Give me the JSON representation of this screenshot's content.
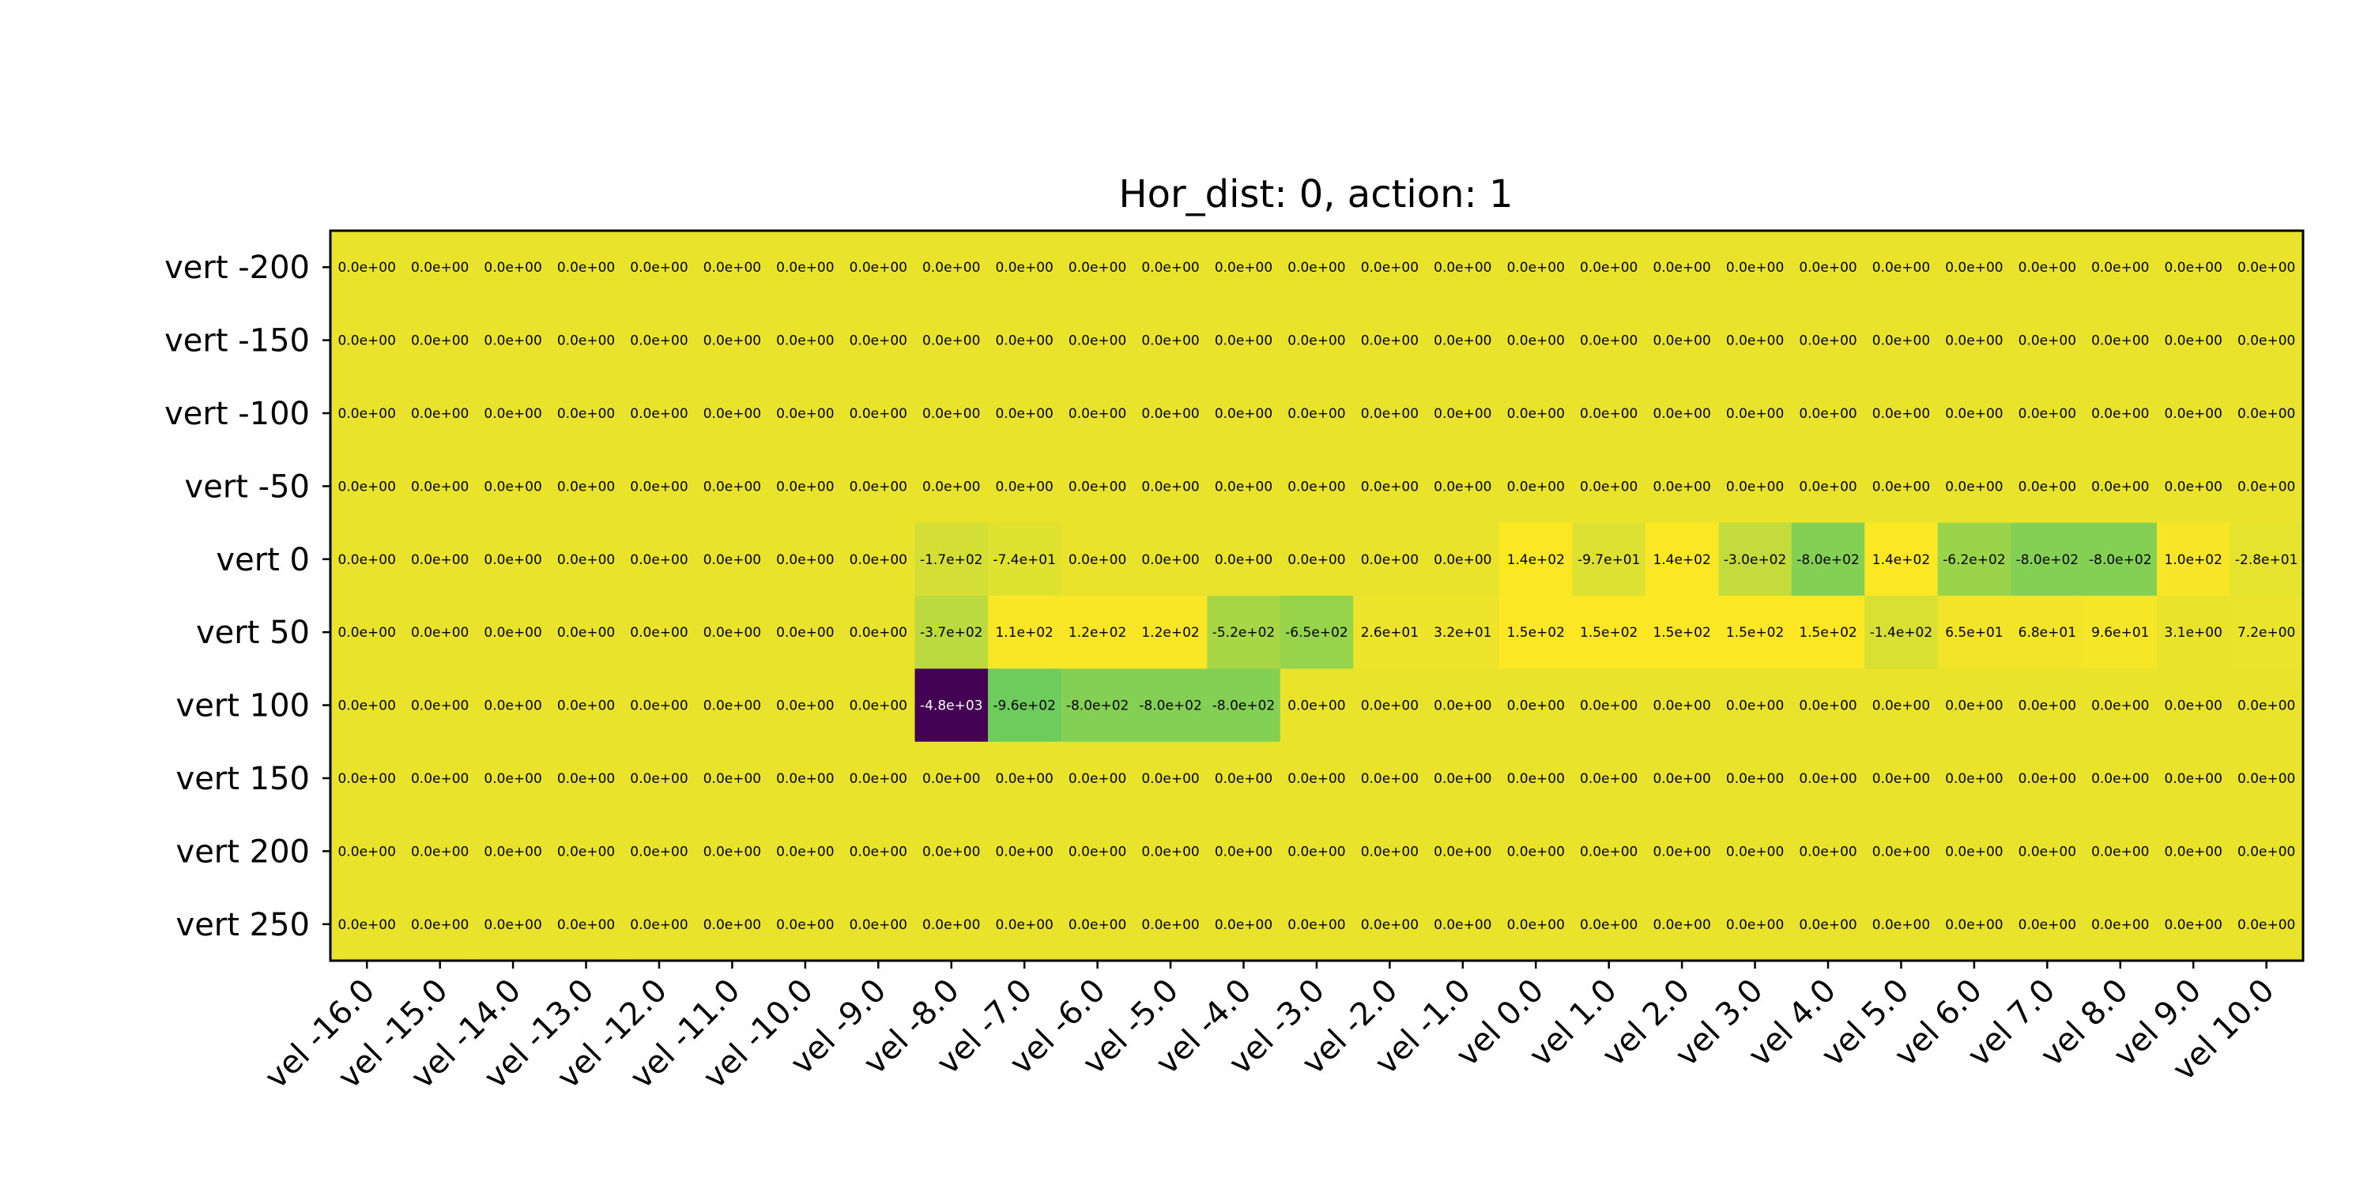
{
  "chart_data": {
    "type": "heatmap",
    "title": "Hor_dist: 0, action: 1",
    "x_labels": [
      "vel -16.0",
      "vel -15.0",
      "vel -14.0",
      "vel -13.0",
      "vel -12.0",
      "vel -11.0",
      "vel -10.0",
      "vel -9.0",
      "vel -8.0",
      "vel -7.0",
      "vel -6.0",
      "vel -5.0",
      "vel -4.0",
      "vel -3.0",
      "vel -2.0",
      "vel -1.0",
      "vel 0.0",
      "vel 1.0",
      "vel 2.0",
      "vel 3.0",
      "vel 4.0",
      "vel 5.0",
      "vel 6.0",
      "vel 7.0",
      "vel 8.0",
      "vel 9.0",
      "vel 10.0"
    ],
    "y_labels": [
      "vert -200",
      "vert -150",
      "vert -100",
      "vert -50",
      "vert 0",
      "vert 50",
      "vert 100",
      "vert 150",
      "vert 200",
      "vert 250"
    ],
    "values": [
      [
        0,
        0,
        0,
        0,
        0,
        0,
        0,
        0,
        0,
        0,
        0,
        0,
        0,
        0,
        0,
        0,
        0,
        0,
        0,
        0,
        0,
        0,
        0,
        0,
        0,
        0,
        0
      ],
      [
        0,
        0,
        0,
        0,
        0,
        0,
        0,
        0,
        0,
        0,
        0,
        0,
        0,
        0,
        0,
        0,
        0,
        0,
        0,
        0,
        0,
        0,
        0,
        0,
        0,
        0,
        0
      ],
      [
        0,
        0,
        0,
        0,
        0,
        0,
        0,
        0,
        0,
        0,
        0,
        0,
        0,
        0,
        0,
        0,
        0,
        0,
        0,
        0,
        0,
        0,
        0,
        0,
        0,
        0,
        0
      ],
      [
        0,
        0,
        0,
        0,
        0,
        0,
        0,
        0,
        0,
        0,
        0,
        0,
        0,
        0,
        0,
        0,
        0,
        0,
        0,
        0,
        0,
        0,
        0,
        0,
        0,
        0,
        0
      ],
      [
        0,
        0,
        0,
        0,
        0,
        0,
        0,
        0,
        -170,
        -74,
        0,
        0,
        0,
        0,
        0,
        0,
        140,
        -97,
        140,
        -300,
        -800,
        140,
        -620,
        -800,
        -800,
        100,
        -28
      ],
      [
        0,
        0,
        0,
        0,
        0,
        0,
        0,
        0,
        -370,
        110,
        120,
        120,
        -520,
        -650,
        26,
        32,
        150,
        150,
        150,
        150,
        150,
        -140,
        65,
        68,
        96,
        3.1,
        7.2
      ],
      [
        0,
        0,
        0,
        0,
        0,
        0,
        0,
        0,
        -4800,
        -960,
        -800,
        -800,
        -800,
        0,
        0,
        0,
        0,
        0,
        0,
        0,
        0,
        0,
        0,
        0,
        0,
        0,
        0
      ],
      [
        0,
        0,
        0,
        0,
        0,
        0,
        0,
        0,
        0,
        0,
        0,
        0,
        0,
        0,
        0,
        0,
        0,
        0,
        0,
        0,
        0,
        0,
        0,
        0,
        0,
        0,
        0
      ],
      [
        0,
        0,
        0,
        0,
        0,
        0,
        0,
        0,
        0,
        0,
        0,
        0,
        0,
        0,
        0,
        0,
        0,
        0,
        0,
        0,
        0,
        0,
        0,
        0,
        0,
        0,
        0
      ],
      [
        0,
        0,
        0,
        0,
        0,
        0,
        0,
        0,
        0,
        0,
        0,
        0,
        0,
        0,
        0,
        0,
        0,
        0,
        0,
        0,
        0,
        0,
        0,
        0,
        0,
        0,
        0
      ]
    ],
    "cell_labels": [
      [
        "0.0e+00",
        "0.0e+00",
        "0.0e+00",
        "0.0e+00",
        "0.0e+00",
        "0.0e+00",
        "0.0e+00",
        "0.0e+00",
        "0.0e+00",
        "0.0e+00",
        "0.0e+00",
        "0.0e+00",
        "0.0e+00",
        "0.0e+00",
        "0.0e+00",
        "0.0e+00",
        "0.0e+00",
        "0.0e+00",
        "0.0e+00",
        "0.0e+00",
        "0.0e+00",
        "0.0e+00",
        "0.0e+00",
        "0.0e+00",
        "0.0e+00",
        "0.0e+00",
        "0.0e+00"
      ],
      [
        "0.0e+00",
        "0.0e+00",
        "0.0e+00",
        "0.0e+00",
        "0.0e+00",
        "0.0e+00",
        "0.0e+00",
        "0.0e+00",
        "0.0e+00",
        "0.0e+00",
        "0.0e+00",
        "0.0e+00",
        "0.0e+00",
        "0.0e+00",
        "0.0e+00",
        "0.0e+00",
        "0.0e+00",
        "0.0e+00",
        "0.0e+00",
        "0.0e+00",
        "0.0e+00",
        "0.0e+00",
        "0.0e+00",
        "0.0e+00",
        "0.0e+00",
        "0.0e+00",
        "0.0e+00"
      ],
      [
        "0.0e+00",
        "0.0e+00",
        "0.0e+00",
        "0.0e+00",
        "0.0e+00",
        "0.0e+00",
        "0.0e+00",
        "0.0e+00",
        "0.0e+00",
        "0.0e+00",
        "0.0e+00",
        "0.0e+00",
        "0.0e+00",
        "0.0e+00",
        "0.0e+00",
        "0.0e+00",
        "0.0e+00",
        "0.0e+00",
        "0.0e+00",
        "0.0e+00",
        "0.0e+00",
        "0.0e+00",
        "0.0e+00",
        "0.0e+00",
        "0.0e+00",
        "0.0e+00",
        "0.0e+00"
      ],
      [
        "0.0e+00",
        "0.0e+00",
        "0.0e+00",
        "0.0e+00",
        "0.0e+00",
        "0.0e+00",
        "0.0e+00",
        "0.0e+00",
        "0.0e+00",
        "0.0e+00",
        "0.0e+00",
        "0.0e+00",
        "0.0e+00",
        "0.0e+00",
        "0.0e+00",
        "0.0e+00",
        "0.0e+00",
        "0.0e+00",
        "0.0e+00",
        "0.0e+00",
        "0.0e+00",
        "0.0e+00",
        "0.0e+00",
        "0.0e+00",
        "0.0e+00",
        "0.0e+00",
        "0.0e+00"
      ],
      [
        "0.0e+00",
        "0.0e+00",
        "0.0e+00",
        "0.0e+00",
        "0.0e+00",
        "0.0e+00",
        "0.0e+00",
        "0.0e+00",
        "-1.7e+02",
        "-7.4e+01",
        "0.0e+00",
        "0.0e+00",
        "0.0e+00",
        "0.0e+00",
        "0.0e+00",
        "0.0e+00",
        "1.4e+02",
        "-9.7e+01",
        "1.4e+02",
        "-3.0e+02",
        "-8.0e+02",
        "1.4e+02",
        "-6.2e+02",
        "-8.0e+02",
        "-8.0e+02",
        "1.0e+02",
        "-2.8e+01"
      ],
      [
        "0.0e+00",
        "0.0e+00",
        "0.0e+00",
        "0.0e+00",
        "0.0e+00",
        "0.0e+00",
        "0.0e+00",
        "0.0e+00",
        "-3.7e+02",
        "1.1e+02",
        "1.2e+02",
        "1.2e+02",
        "-5.2e+02",
        "-6.5e+02",
        "2.6e+01",
        "3.2e+01",
        "1.5e+02",
        "1.5e+02",
        "1.5e+02",
        "1.5e+02",
        "1.5e+02",
        "-1.4e+02",
        "6.5e+01",
        "6.8e+01",
        "9.6e+01",
        "3.1e+00",
        "7.2e+00"
      ],
      [
        "0.0e+00",
        "0.0e+00",
        "0.0e+00",
        "0.0e+00",
        "0.0e+00",
        "0.0e+00",
        "0.0e+00",
        "0.0e+00",
        "-4.8e+03",
        "-9.6e+02",
        "-8.0e+02",
        "-8.0e+02",
        "-8.0e+02",
        "0.0e+00",
        "0.0e+00",
        "0.0e+00",
        "0.0e+00",
        "0.0e+00",
        "0.0e+00",
        "0.0e+00",
        "0.0e+00",
        "0.0e+00",
        "0.0e+00",
        "0.0e+00",
        "0.0e+00",
        "0.0e+00",
        "0.0e+00"
      ],
      [
        "0.0e+00",
        "0.0e+00",
        "0.0e+00",
        "0.0e+00",
        "0.0e+00",
        "0.0e+00",
        "0.0e+00",
        "0.0e+00",
        "0.0e+00",
        "0.0e+00",
        "0.0e+00",
        "0.0e+00",
        "0.0e+00",
        "0.0e+00",
        "0.0e+00",
        "0.0e+00",
        "0.0e+00",
        "0.0e+00",
        "0.0e+00",
        "0.0e+00",
        "0.0e+00",
        "0.0e+00",
        "0.0e+00",
        "0.0e+00",
        "0.0e+00",
        "0.0e+00",
        "0.0e+00"
      ],
      [
        "0.0e+00",
        "0.0e+00",
        "0.0e+00",
        "0.0e+00",
        "0.0e+00",
        "0.0e+00",
        "0.0e+00",
        "0.0e+00",
        "0.0e+00",
        "0.0e+00",
        "0.0e+00",
        "0.0e+00",
        "0.0e+00",
        "0.0e+00",
        "0.0e+00",
        "0.0e+00",
        "0.0e+00",
        "0.0e+00",
        "0.0e+00",
        "0.0e+00",
        "0.0e+00",
        "0.0e+00",
        "0.0e+00",
        "0.0e+00",
        "0.0e+00",
        "0.0e+00",
        "0.0e+00"
      ],
      [
        "0.0e+00",
        "0.0e+00",
        "0.0e+00",
        "0.0e+00",
        "0.0e+00",
        "0.0e+00",
        "0.0e+00",
        "0.0e+00",
        "0.0e+00",
        "0.0e+00",
        "0.0e+00",
        "0.0e+00",
        "0.0e+00",
        "0.0e+00",
        "0.0e+00",
        "0.0e+00",
        "0.0e+00",
        "0.0e+00",
        "0.0e+00",
        "0.0e+00",
        "0.0e+00",
        "0.0e+00",
        "0.0e+00",
        "0.0e+00",
        "0.0e+00",
        "0.0e+00",
        "0.0e+00"
      ]
    ],
    "colormap": "viridis",
    "value_range": [
      -4800,
      150
    ],
    "grid": false,
    "colors": {
      "low_text": "#ffffff",
      "high_text": "#000000",
      "frame": "#000000"
    }
  }
}
